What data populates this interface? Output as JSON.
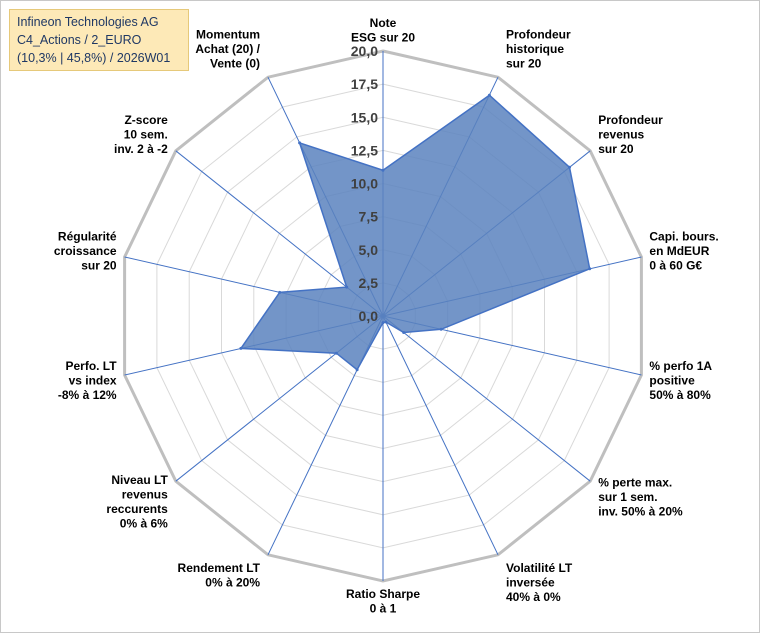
{
  "header": {
    "line1": "Infineon Technologies AG",
    "line2": "C4_Actions / 2_EURO",
    "line3": "(10,3% | 45,8%) / 2026W01"
  },
  "chart_data": {
    "type": "radar",
    "title": "Infineon Technologies AG",
    "rmin": 0,
    "rmax": 20,
    "tick_step": 2.5,
    "tick_labels": [
      "0,0",
      "2,5",
      "5,0",
      "7,5",
      "10,0",
      "12,5",
      "15,0",
      "17,5",
      "20,0"
    ],
    "axes": [
      {
        "label": [
          "Note",
          "ESG sur 20"
        ],
        "value": 11.0
      },
      {
        "label": [
          "Profondeur",
          "historique",
          "sur 20"
        ],
        "value": 18.5
      },
      {
        "label": [
          "Profondeur",
          "revenus",
          "sur 20"
        ],
        "value": 18.0
      },
      {
        "label": [
          "Capi. bours.",
          "en MdEUR",
          "0 à 60 G€"
        ],
        "value": 16.0
      },
      {
        "label": [
          "% perfo 1A",
          "positive",
          "50% à 80%"
        ],
        "value": 4.5
      },
      {
        "label": [
          "% perte max.",
          "sur 1 sem.",
          "inv. 50% à 20%"
        ],
        "value": 2.0
      },
      {
        "label": [
          "Volatilité LT",
          "inversée",
          "40% à 0%"
        ],
        "value": 0.5
      },
      {
        "label": [
          "Ratio Sharpe",
          "0 à 1"
        ],
        "value": 0.5
      },
      {
        "label": [
          "Rendement LT",
          "0% à 20%"
        ],
        "value": 4.5
      },
      {
        "label": [
          "Niveau LT",
          "revenus",
          "reccurents",
          "0% à 6%"
        ],
        "value": 4.5
      },
      {
        "label": [
          "Perfo. LT",
          "vs index",
          "-8% à 12%"
        ],
        "value": 11.0
      },
      {
        "label": [
          "Régularité",
          "croissance",
          "sur 20"
        ],
        "value": 8.0
      },
      {
        "label": [
          "Z-score",
          "10 sem.",
          "inv. 2 à -2"
        ],
        "value": 3.5
      },
      {
        "label": [
          "Momentum",
          "Achat (20) /",
          "Vente (0)"
        ],
        "value": 14.5
      }
    ],
    "colors": {
      "fill": "#5b82be",
      "stroke": "#4472c4",
      "grid": "#d9d9d9",
      "spokes": "#4472c4",
      "outer": "#bfbfbf"
    }
  }
}
